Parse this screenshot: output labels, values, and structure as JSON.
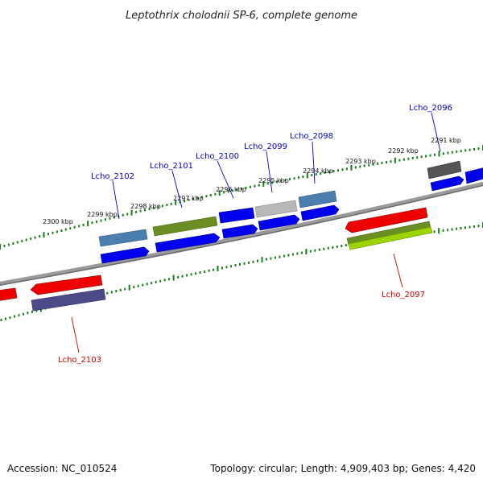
{
  "title": "Leptothrix cholodnii SP-6, complete genome",
  "footer": {
    "accession": "Accession: NC_010524",
    "summary": "Topology: circular; Length: 4,909,403 bp; Genes: 4,420"
  },
  "ticks": [
    "2291 kbp",
    "2292 kbp",
    "2293 kbp",
    "2294 kbp",
    "2295 kbp",
    "2296 kbp",
    "2297 kbp",
    "2298 kbp",
    "2299 kbp",
    "2300 kbp"
  ],
  "gene_labels": {
    "forward": [
      "Lcho_2096",
      "Lcho_2098",
      "Lcho_2099",
      "Lcho_2100",
      "Lcho_2101",
      "Lcho_2102"
    ],
    "reverse": [
      "Lcho_2097",
      "Lcho_2103"
    ]
  },
  "colors": {
    "backbone": "#8a8a8a",
    "tick": "#1f7a1f",
    "cds_blue": "#0000ee",
    "gene_red": "#ee0000",
    "steel": "#4a7fb0",
    "olive": "#6b8e23",
    "lightgray": "#b8b8b8",
    "darkgray": "#555555",
    "slate": "#4b4b8a",
    "lime": "#9bd400",
    "label_forward": "#0000cc",
    "label_reverse": "#cc0000"
  }
}
